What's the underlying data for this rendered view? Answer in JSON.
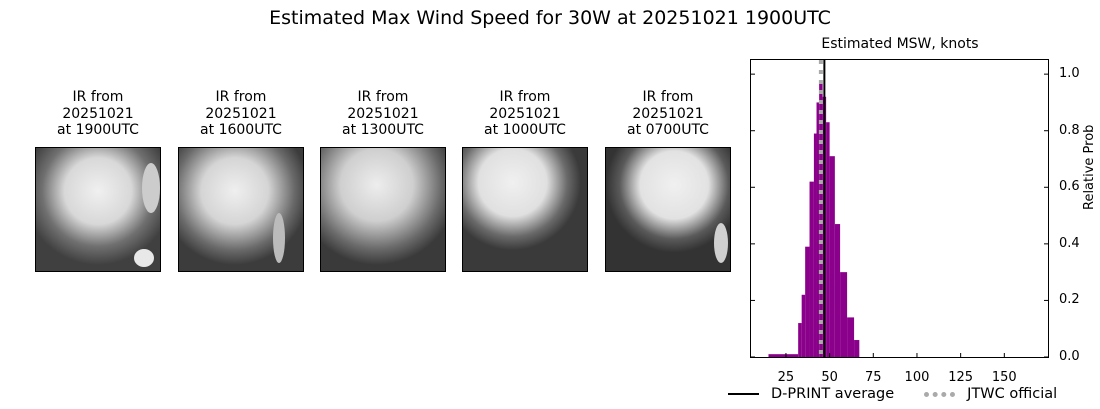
{
  "figure": {
    "title": "Estimated Max Wind Speed for 30W at 20251021 1900UTC"
  },
  "ir_panels": [
    {
      "caption": "IR from\n20251021\nat 1900UTC"
    },
    {
      "caption": "IR from\n20251021\nat 1600UTC"
    },
    {
      "caption": "IR from\n20251021\nat 1300UTC"
    },
    {
      "caption": "IR from\n20251021\nat 1000UTC"
    },
    {
      "caption": "IR from\n20251021\nat 0700UTC"
    }
  ],
  "legend": {
    "dprint_label": "D-PRINT average",
    "jtwc_label": "JTWC official"
  },
  "colors": {
    "bar": "#8b008b",
    "dprint_line": "#000000",
    "jtwc_line": "#aaaaaa"
  },
  "chart_data": {
    "type": "bar",
    "title": "Estimated MSW, knots",
    "xlabel": "",
    "ylabel": "Relative Prob",
    "xlim": [
      5,
      175
    ],
    "ylim": [
      0,
      1.05
    ],
    "xticks": [
      25,
      50,
      75,
      100,
      125,
      150
    ],
    "yticks": [
      0.0,
      0.2,
      0.4,
      0.6,
      0.8,
      1.0
    ],
    "ytick_labels": [
      "0.0",
      "0.2",
      "0.4",
      "0.6",
      "0.8",
      "1.0"
    ],
    "y_axis_position": "right",
    "grid": false,
    "legend_position": "below",
    "bins": [
      {
        "x0": 15,
        "x1": 32,
        "value": 0.01
      },
      {
        "x0": 32,
        "x1": 34,
        "value": 0.12
      },
      {
        "x0": 34,
        "x1": 36,
        "value": 0.22
      },
      {
        "x0": 36,
        "x1": 38.5,
        "value": 0.39
      },
      {
        "x0": 38.5,
        "x1": 41,
        "value": 0.62
      },
      {
        "x0": 41,
        "x1": 42.5,
        "value": 0.79
      },
      {
        "x0": 42.5,
        "x1": 44,
        "value": 0.9
      },
      {
        "x0": 44,
        "x1": 46,
        "value": 0.97
      },
      {
        "x0": 46,
        "x1": 48,
        "value": 0.92
      },
      {
        "x0": 48,
        "x1": 50,
        "value": 0.83
      },
      {
        "x0": 50,
        "x1": 53,
        "value": 0.71
      },
      {
        "x0": 53,
        "x1": 56,
        "value": 0.47
      },
      {
        "x0": 56,
        "x1": 60,
        "value": 0.3
      },
      {
        "x0": 60,
        "x1": 64,
        "value": 0.14
      },
      {
        "x0": 64,
        "x1": 67,
        "value": 0.06
      }
    ],
    "vlines": [
      {
        "name": "D-PRINT average",
        "x": 47,
        "style": "solid",
        "color": "#000000"
      },
      {
        "name": "JTWC official",
        "x": 45,
        "style": "dotted",
        "color": "#aaaaaa"
      }
    ]
  }
}
